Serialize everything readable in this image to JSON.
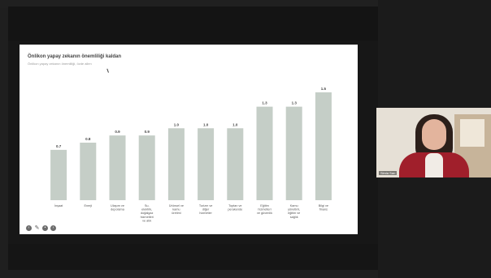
{
  "meeting": {
    "participant_name": "Simla Sarı"
  },
  "slide": {
    "title": "Önlikon yapay zekanın önemliliği kaldan",
    "subtitle": "Önlikon yapay zekanın önemliliği, özde allen"
  },
  "controls": {
    "prev_icon": "chevron-left-icon",
    "pen_icon": "pen-icon",
    "next_icon": "chevron-right-icon",
    "more_icon": "more-icon"
  },
  "chart_data": {
    "type": "bar",
    "title": "Önlikon yapay zekanın önemliliği kaldan",
    "categories": [
      "İnşaat",
      "Enerji",
      "Ulaşım ve depolama",
      "Su, elektrik, doğalgaz hizmetleri ve atık",
      "Ürünsel ve kamu üretimi",
      "Turizm ve diğer hizmetler",
      "Toptan ve perakende",
      "Eğitim hizmetleri ve güvenlik",
      "Kamu yönetimi, eğitim ve sağlık",
      "Bilgi ve finans"
    ],
    "values": [
      0.7,
      0.8,
      0.9,
      0.9,
      1.0,
      1.0,
      1.0,
      1.3,
      1.3,
      1.5
    ],
    "ylim": [
      0,
      1.6
    ],
    "bar_color": "#c5cec7",
    "grid": false
  }
}
